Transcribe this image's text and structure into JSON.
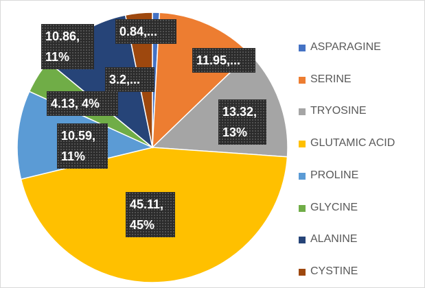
{
  "chart_data": {
    "type": "pie",
    "categories": [
      "ASPARAGINE",
      "SERINE",
      "TRYOSINE",
      "GLUTAMIC ACID",
      "PROLINE",
      "GLYCINE",
      "ALANINE",
      "CYSTINE"
    ],
    "values": [
      0.84,
      11.95,
      13.32,
      45.11,
      10.59,
      4.13,
      10.86,
      3.2
    ],
    "value_labels": [
      "0.84,...",
      "11.95,...",
      "13.32, 13%",
      "45.11, 45%",
      "10.59, 11%",
      "4.13, 4%",
      "10.86, 11%",
      "3.2,..."
    ],
    "colors": [
      "#4472c4",
      "#ed7d31",
      "#a5a5a5",
      "#ffc000",
      "#5b9bd5",
      "#70ad47",
      "#264478",
      "#9e480e"
    ],
    "legend": "right"
  }
}
